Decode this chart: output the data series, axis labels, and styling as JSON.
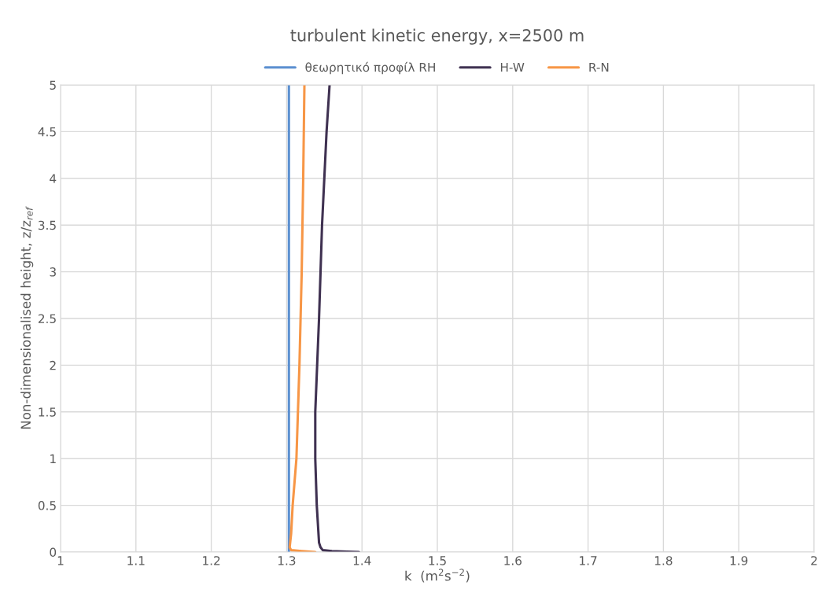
{
  "chart_data": {
    "type": "line",
    "title": "turbulent kinetic energy, x=2500 m",
    "xlabel": "k  (m$^{2}$s$^{−2}$)",
    "ylabel": "Non-dimensionalised height, z/z$_{ref}$",
    "series": [
      {
        "name": "θεωρητικό προφίλ RH",
        "color": "#5b8fd0",
        "x": [
          1.303,
          1.303
        ],
        "values": [
          0,
          5
        ]
      },
      {
        "name": "H-W",
        "color": "#3f3151",
        "x": [
          1.396,
          1.38,
          1.36,
          1.348,
          1.345,
          1.343,
          1.34,
          1.338,
          1.338,
          1.3405,
          1.343,
          1.345,
          1.347,
          1.35,
          1.353,
          1.357
        ],
        "values": [
          0,
          0.005,
          0.01,
          0.02,
          0.05,
          0.1,
          0.5,
          1,
          1.5,
          2,
          2.5,
          3,
          3.5,
          4,
          4.5,
          5
        ]
      },
      {
        "name": "R-N",
        "color": "#f79646",
        "x": [
          1.338,
          1.32,
          1.306,
          1.304,
          1.306,
          1.308,
          1.313,
          1.317,
          1.32,
          1.322,
          1.3236
        ],
        "values": [
          0,
          0.01,
          0.02,
          0.05,
          0.2,
          0.5,
          1,
          2,
          3,
          4,
          5
        ]
      }
    ],
    "xlim": [
      1,
      2
    ],
    "xticks": [
      1,
      1.1,
      1.2,
      1.3,
      1.4,
      1.5,
      1.6,
      1.7,
      1.8,
      1.9,
      2
    ],
    "ylim": [
      0,
      5
    ],
    "yticks": [
      0,
      0.5,
      1,
      1.5,
      2,
      2.5,
      3,
      3.5,
      4,
      4.5,
      5
    ],
    "grid": true,
    "legend": "top",
    "marker": "none",
    "line_style": "solid"
  }
}
